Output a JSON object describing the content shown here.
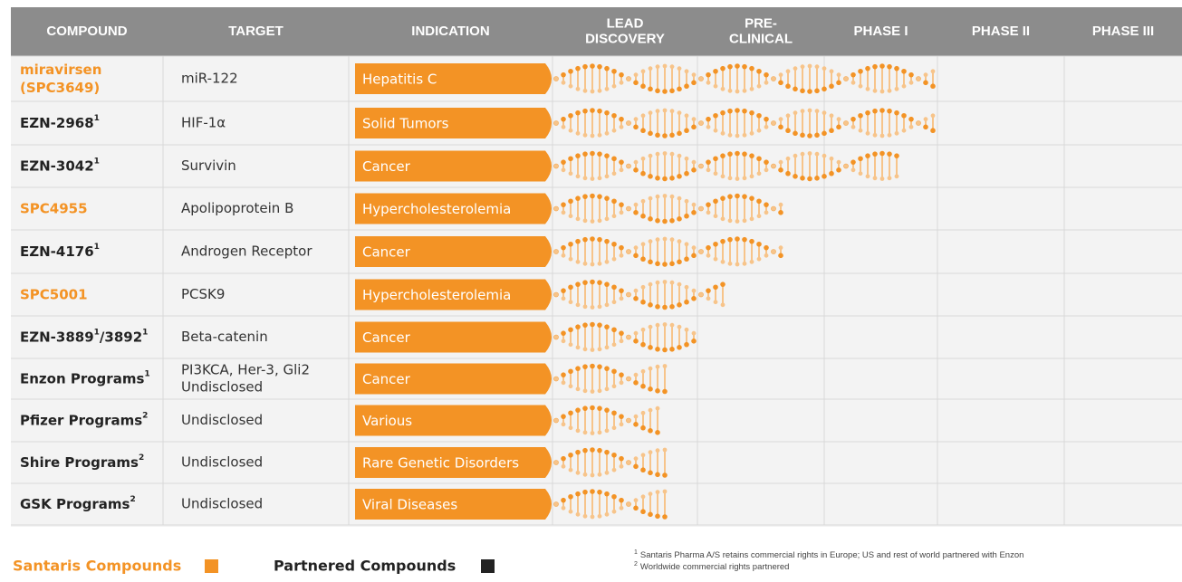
{
  "header": {
    "columns": [
      [
        "COMPOUND"
      ],
      [
        "TARGET"
      ],
      [
        "INDICATION"
      ],
      [
        "LEAD",
        "DISCOVERY"
      ],
      [
        "PRE-",
        "CLINICAL"
      ],
      [
        "PHASE I"
      ],
      [
        "PHASE II"
      ],
      [
        "PHASE III"
      ]
    ]
  },
  "rows": [
    {
      "compound": [
        {
          "text": "miravirsen"
        },
        {
          "text": "(SPC3649)"
        }
      ],
      "santaris": true,
      "target": [
        "miR-122"
      ],
      "indication": "Hepatitis C",
      "progress": 3.0
    },
    {
      "compound": [
        {
          "text": "EZN-2968",
          "sup": "1"
        }
      ],
      "santaris": false,
      "target": [
        "HIF-1α"
      ],
      "indication": "Solid Tumors",
      "progress": 3.0
    },
    {
      "compound": [
        {
          "text": "EZN-3042",
          "sup": "1"
        }
      ],
      "santaris": false,
      "target": [
        "Survivin"
      ],
      "indication": "Cancer",
      "progress": 2.7
    },
    {
      "compound": [
        {
          "text": "SPC4955"
        }
      ],
      "santaris": true,
      "target": [
        "Apolipoprotein B"
      ],
      "indication": "Hypercholesterolemia",
      "progress": 1.7
    },
    {
      "compound": [
        {
          "text": "EZN-4176",
          "sup": "1"
        }
      ],
      "santaris": false,
      "target": [
        "Androgen Receptor"
      ],
      "indication": "Cancer",
      "progress": 1.7
    },
    {
      "compound": [
        {
          "text": "SPC5001"
        }
      ],
      "santaris": true,
      "target": [
        "PCSK9"
      ],
      "indication": "Hypercholesterolemia",
      "progress": 1.25
    },
    {
      "compound": [
        {
          "text": "EZN-3889",
          "sup": "1"
        },
        {
          "text": "/3892",
          "sup": "1"
        }
      ],
      "santaris": false,
      "target": [
        "Beta-catenin"
      ],
      "indication": "Cancer",
      "progress": 1.0
    },
    {
      "compound": [
        {
          "text": "Enzon Programs",
          "sup": "1"
        }
      ],
      "santaris": false,
      "target": [
        "PI3KCA, Her-3, Gli2",
        "Undisclosed"
      ],
      "indication": "Cancer",
      "progress": 0.8
    },
    {
      "compound": [
        {
          "text": "Pfizer Programs",
          "sup": "2"
        }
      ],
      "santaris": false,
      "target": [
        "Undisclosed"
      ],
      "indication": "Various",
      "progress": 0.75
    },
    {
      "compound": [
        {
          "text": "Shire Programs",
          "sup": "2"
        }
      ],
      "santaris": false,
      "target": [
        "Undisclosed"
      ],
      "indication": "Rare Genetic Disorders",
      "progress": 0.8
    },
    {
      "compound": [
        {
          "text": "GSK Programs",
          "sup": "2"
        }
      ],
      "santaris": false,
      "target": [
        "Undisclosed"
      ],
      "indication": "Viral Diseases",
      "progress": 0.8
    }
  ],
  "legend": {
    "santaris": "Santaris Compounds",
    "partnered": "Partnered Compounds"
  },
  "footnotes": [
    {
      "mark": "1",
      "text": "Santaris Pharma A/S retains commercial rights in Europe; US and rest of world partnered with Enzon"
    },
    {
      "mark": "2",
      "text": "Worldwide commercial rights partnered"
    }
  ]
}
